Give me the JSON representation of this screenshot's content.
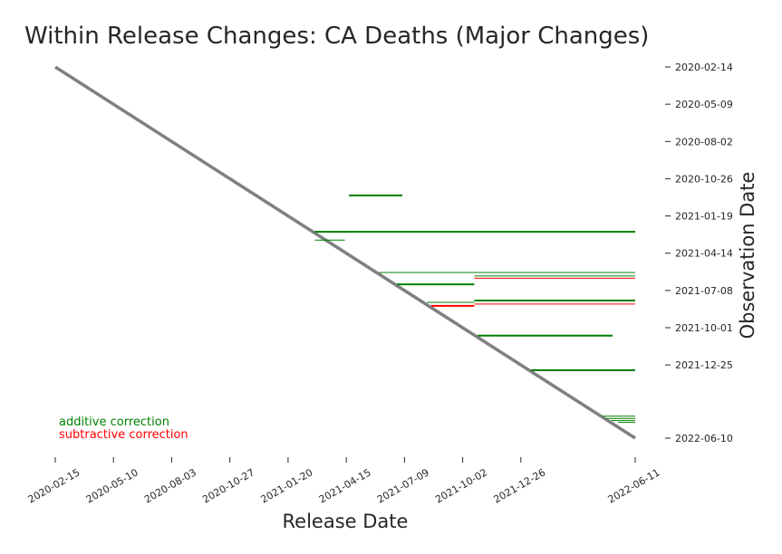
{
  "chart_data": {
    "type": "segments",
    "title": "Within Release Changes: CA Deaths (Major Changes)",
    "xlabel": "Release Date",
    "ylabel": "Observation Date",
    "xlim": [
      "2020-02-15",
      "2022-06-11"
    ],
    "ylim": [
      "2020-02-14",
      "2022-06-10"
    ],
    "xticks": [
      "2020-02-15",
      "2020-05-10",
      "2020-08-03",
      "2020-10-27",
      "2021-01-20",
      "2021-04-15",
      "2021-07-09",
      "2021-10-02",
      "2021-12-26",
      "2022-06-11"
    ],
    "yticks": [
      "2020-02-14",
      "2020-05-09",
      "2020-08-02",
      "2020-10-26",
      "2021-01-19",
      "2021-04-14",
      "2021-07-08",
      "2021-10-01",
      "2021-12-25",
      "2022-06-10"
    ],
    "diagonal": {
      "x": [
        "2020-02-15",
        "2022-06-11"
      ],
      "y": [
        "2020-02-14",
        "2022-06-10"
      ],
      "color": "#808080"
    },
    "series": [
      {
        "name": "additive correction",
        "color": "green",
        "segments": [
          {
            "y": "2020-12-03",
            "x": [
              "2021-04-19",
              "2021-07-06"
            ],
            "lw": 2
          },
          {
            "y": "2021-02-24",
            "x": [
              "2021-02-28",
              "2022-06-11"
            ],
            "lw": 2
          },
          {
            "y": "2021-03-15",
            "x": [
              "2021-02-28",
              "2021-04-13"
            ],
            "lw": 1
          },
          {
            "y": "2021-05-28",
            "x": [
              "2021-06-02",
              "2022-06-11"
            ],
            "lw": 1
          },
          {
            "y": "2021-06-05",
            "x": [
              "2021-10-19",
              "2022-06-11"
            ],
            "lw": 1
          },
          {
            "y": "2021-06-24",
            "x": [
              "2021-06-28",
              "2021-10-19"
            ],
            "lw": 2
          },
          {
            "y": "2021-07-31",
            "x": [
              "2021-10-19",
              "2022-06-11"
            ],
            "lw": 2
          },
          {
            "y": "2021-08-04",
            "x": [
              "2021-08-11",
              "2021-10-19"
            ],
            "lw": 1
          },
          {
            "y": "2021-10-19",
            "x": [
              "2021-10-24",
              "2022-05-09"
            ],
            "lw": 2
          },
          {
            "y": "2022-01-06",
            "x": [
              "2022-01-10",
              "2022-06-11"
            ],
            "lw": 2
          },
          {
            "y": "2022-04-21",
            "x": [
              "2022-04-24",
              "2022-06-11"
            ],
            "lw": 1
          },
          {
            "y": "2022-04-26",
            "x": [
              "2022-04-30",
              "2022-06-11"
            ],
            "lw": 1
          },
          {
            "y": "2022-05-01",
            "x": [
              "2022-05-07",
              "2022-06-11"
            ],
            "lw": 1
          },
          {
            "y": "2022-05-05",
            "x": [
              "2022-05-17",
              "2022-06-11"
            ],
            "lw": 1
          }
        ]
      },
      {
        "name": "subtractive correction",
        "color": "red",
        "segments": [
          {
            "y": "2021-06-10",
            "x": [
              "2021-10-19",
              "2022-06-11"
            ],
            "lw": 1
          },
          {
            "y": "2021-08-08",
            "x": [
              "2021-10-19",
              "2022-06-11"
            ],
            "lw": 1
          },
          {
            "y": "2021-08-12",
            "x": [
              "2021-08-17",
              "2021-10-19"
            ],
            "lw": 2
          }
        ]
      }
    ]
  }
}
